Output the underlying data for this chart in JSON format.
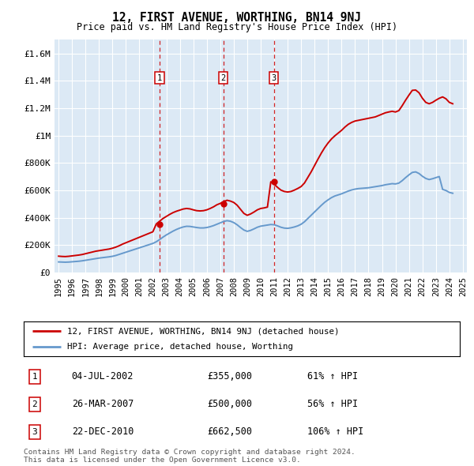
{
  "title": "12, FIRST AVENUE, WORTHING, BN14 9NJ",
  "subtitle": "Price paid vs. HM Land Registry's House Price Index (HPI)",
  "plot_bg_color": "#dce9f5",
  "grid_color": "#ffffff",
  "ylabel_ticks": [
    "£0",
    "£200K",
    "£400K",
    "£600K",
    "£800K",
    "£1M",
    "£1.2M",
    "£1.4M",
    "£1.6M"
  ],
  "ytick_values": [
    0,
    200000,
    400000,
    600000,
    800000,
    1000000,
    1200000,
    1400000,
    1600000
  ],
  "ylim": [
    0,
    1700000
  ],
  "sale_prices": [
    355000,
    500000,
    662500
  ],
  "sale_labels": [
    "1",
    "2",
    "3"
  ],
  "sale_label_pcts": [
    "61% ↑ HPI",
    "56% ↑ HPI",
    "106% ↑ HPI"
  ],
  "sale_date_strs": [
    "04-JUL-2002",
    "26-MAR-2007",
    "22-DEC-2010"
  ],
  "sale_date_nums": [
    2002.5,
    2007.23,
    2010.98
  ],
  "legend_line1": "12, FIRST AVENUE, WORTHING, BN14 9NJ (detached house)",
  "legend_line2": "HPI: Average price, detached house, Worthing",
  "footer1": "Contains HM Land Registry data © Crown copyright and database right 2024.",
  "footer2": "This data is licensed under the Open Government Licence v3.0.",
  "red_color": "#cc0000",
  "blue_color": "#6699cc",
  "red_hpi_line": {
    "years": [
      1995.0,
      1995.25,
      1995.5,
      1995.75,
      1996.0,
      1996.25,
      1996.5,
      1996.75,
      1997.0,
      1997.25,
      1997.5,
      1997.75,
      1998.0,
      1998.25,
      1998.5,
      1998.75,
      1999.0,
      1999.25,
      1999.5,
      1999.75,
      2000.0,
      2000.25,
      2000.5,
      2000.75,
      2001.0,
      2001.25,
      2001.5,
      2001.75,
      2002.0,
      2002.25,
      2002.5,
      2002.75,
      2003.0,
      2003.25,
      2003.5,
      2003.75,
      2004.0,
      2004.25,
      2004.5,
      2004.75,
      2005.0,
      2005.25,
      2005.5,
      2005.75,
      2006.0,
      2006.25,
      2006.5,
      2006.75,
      2007.0,
      2007.25,
      2007.5,
      2007.75,
      2008.0,
      2008.25,
      2008.5,
      2008.75,
      2009.0,
      2009.25,
      2009.5,
      2009.75,
      2010.0,
      2010.25,
      2010.5,
      2010.75,
      2011.0,
      2011.25,
      2011.5,
      2011.75,
      2012.0,
      2012.25,
      2012.5,
      2012.75,
      2013.0,
      2013.25,
      2013.5,
      2013.75,
      2014.0,
      2014.25,
      2014.5,
      2014.75,
      2015.0,
      2015.25,
      2015.5,
      2015.75,
      2016.0,
      2016.25,
      2016.5,
      2016.75,
      2017.0,
      2017.25,
      2017.5,
      2017.75,
      2018.0,
      2018.25,
      2018.5,
      2018.75,
      2019.0,
      2019.25,
      2019.5,
      2019.75,
      2020.0,
      2020.25,
      2020.5,
      2020.75,
      2021.0,
      2021.25,
      2021.5,
      2021.75,
      2022.0,
      2022.25,
      2022.5,
      2022.75,
      2023.0,
      2023.25,
      2023.5,
      2023.75,
      2024.0,
      2024.25
    ],
    "values": [
      120000,
      118000,
      117000,
      119000,
      122000,
      125000,
      128000,
      132000,
      138000,
      144000,
      150000,
      156000,
      160000,
      164000,
      168000,
      172000,
      178000,
      186000,
      196000,
      208000,
      218000,
      228000,
      238000,
      248000,
      258000,
      268000,
      278000,
      288000,
      298000,
      355000,
      375000,
      395000,
      410000,
      425000,
      438000,
      448000,
      456000,
      464000,
      468000,
      465000,
      458000,
      452000,
      450000,
      452000,
      458000,
      468000,
      480000,
      495000,
      505000,
      518000,
      528000,
      522000,
      512000,
      492000,
      462000,
      432000,
      418000,
      428000,
      442000,
      458000,
      468000,
      472000,
      478000,
      662500,
      645000,
      622000,
      602000,
      592000,
      588000,
      592000,
      602000,
      614000,
      628000,
      654000,
      695000,
      736000,
      782000,
      828000,
      872000,
      912000,
      946000,
      975000,
      998000,
      1018000,
      1038000,
      1062000,
      1082000,
      1096000,
      1106000,
      1111000,
      1116000,
      1121000,
      1126000,
      1131000,
      1136000,
      1146000,
      1156000,
      1166000,
      1172000,
      1177000,
      1172000,
      1182000,
      1218000,
      1258000,
      1295000,
      1330000,
      1332000,
      1312000,
      1272000,
      1242000,
      1232000,
      1242000,
      1258000,
      1272000,
      1282000,
      1268000,
      1242000,
      1232000
    ]
  },
  "blue_hpi_line": {
    "years": [
      1995.0,
      1995.25,
      1995.5,
      1995.75,
      1996.0,
      1996.25,
      1996.5,
      1996.75,
      1997.0,
      1997.25,
      1997.5,
      1997.75,
      1998.0,
      1998.25,
      1998.5,
      1998.75,
      1999.0,
      1999.25,
      1999.5,
      1999.75,
      2000.0,
      2000.25,
      2000.5,
      2000.75,
      2001.0,
      2001.25,
      2001.5,
      2001.75,
      2002.0,
      2002.25,
      2002.5,
      2002.75,
      2003.0,
      2003.25,
      2003.5,
      2003.75,
      2004.0,
      2004.25,
      2004.5,
      2004.75,
      2005.0,
      2005.25,
      2005.5,
      2005.75,
      2006.0,
      2006.25,
      2006.5,
      2006.75,
      2007.0,
      2007.25,
      2007.5,
      2007.75,
      2008.0,
      2008.25,
      2008.5,
      2008.75,
      2009.0,
      2009.25,
      2009.5,
      2009.75,
      2010.0,
      2010.25,
      2010.5,
      2010.75,
      2011.0,
      2011.25,
      2011.5,
      2011.75,
      2012.0,
      2012.25,
      2012.5,
      2012.75,
      2013.0,
      2013.25,
      2013.5,
      2013.75,
      2014.0,
      2014.25,
      2014.5,
      2014.75,
      2015.0,
      2015.25,
      2015.5,
      2015.75,
      2016.0,
      2016.25,
      2016.5,
      2016.75,
      2017.0,
      2017.25,
      2017.5,
      2017.75,
      2018.0,
      2018.25,
      2018.5,
      2018.75,
      2019.0,
      2019.25,
      2019.5,
      2019.75,
      2020.0,
      2020.25,
      2020.5,
      2020.75,
      2021.0,
      2021.25,
      2021.5,
      2021.75,
      2022.0,
      2022.25,
      2022.5,
      2022.75,
      2023.0,
      2023.25,
      2023.5,
      2023.75,
      2024.0,
      2024.25
    ],
    "values": [
      78000,
      77000,
      76000,
      77000,
      79000,
      81000,
      83000,
      86000,
      90000,
      94000,
      98000,
      102000,
      106000,
      109000,
      112000,
      115000,
      119000,
      125000,
      133000,
      141000,
      149000,
      157000,
      165000,
      173000,
      181000,
      189000,
      197000,
      205000,
      213000,
      225000,
      241000,
      259000,
      275000,
      289000,
      303000,
      315000,
      325000,
      333000,
      338000,
      337000,
      333000,
      329000,
      326000,
      326000,
      329000,
      335000,
      343000,
      353000,
      363000,
      373000,
      379000,
      375000,
      365000,
      349000,
      329000,
      311000,
      301000,
      308000,
      319000,
      331000,
      339000,
      343000,
      347000,
      351000,
      349000,
      341000,
      331000,
      325000,
      323000,
      327000,
      333000,
      341000,
      353000,
      371000,
      395000,
      419000,
      443000,
      467000,
      491000,
      513000,
      531000,
      547000,
      559000,
      567000,
      575000,
      585000,
      595000,
      603000,
      609000,
      613000,
      615000,
      617000,
      619000,
      623000,
      627000,
      631000,
      635000,
      641000,
      645000,
      649000,
      647000,
      653000,
      671000,
      693000,
      713000,
      731000,
      735000,
      723000,
      703000,
      687000,
      679000,
      685000,
      693000,
      701000,
      607000,
      599000,
      585000,
      579000
    ]
  },
  "x_tick_years": [
    1995,
    1996,
    1997,
    1998,
    1999,
    2000,
    2001,
    2002,
    2003,
    2004,
    2005,
    2006,
    2007,
    2008,
    2009,
    2010,
    2011,
    2012,
    2013,
    2014,
    2015,
    2016,
    2017,
    2018,
    2019,
    2020,
    2021,
    2022,
    2023,
    2024,
    2025
  ]
}
